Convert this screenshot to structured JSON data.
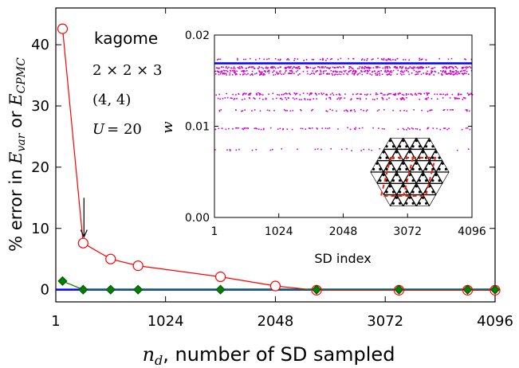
{
  "chart_data": [
    {
      "id": "main",
      "type": "line",
      "xlabel_var": "n",
      "xlabel_sub": "d",
      "xlabel_rest": ", number of SD sampled",
      "ylabel_pre": "% error in ",
      "ylabel_var1": "E",
      "ylabel_sub1": "var",
      "ylabel_mid": " or ",
      "ylabel_var2": "E",
      "ylabel_sub2": "CPMC",
      "xlim": [
        1,
        4096
      ],
      "ylim": [
        -2,
        46
      ],
      "xticks": [
        1,
        1024,
        2048,
        3072,
        4096
      ],
      "yticks": [
        0,
        10,
        20,
        30,
        40
      ],
      "series": [
        {
          "marker": "open-circle",
          "color": "#ff0000",
          "x": [
            64,
            256,
            512,
            768,
            1536,
            2048,
            2432,
            3200,
            3840,
            4096
          ],
          "y": [
            42.6,
            7.6,
            5.0,
            3.9,
            2.1,
            0.6,
            -0.1,
            -0.1,
            -0.1,
            -0.1
          ]
        },
        {
          "marker": "filled-diamond",
          "color": "#008000",
          "x": [
            64,
            256,
            512,
            768,
            1536,
            2432,
            3200,
            3840,
            4096
          ],
          "y": [
            1.4,
            0.0,
            0.0,
            0.0,
            0.0,
            0.0,
            0.0,
            0.0,
            0.0
          ]
        }
      ],
      "reference_line": {
        "y": 0,
        "color": "#0000ff"
      },
      "annotation_arrow": {
        "x": 256,
        "from_y": 15,
        "to_y": 8.6
      }
    },
    {
      "id": "inset",
      "type": "scatter",
      "xlabel": "SD index",
      "ylabel": "w",
      "xlim": [
        1,
        4096
      ],
      "ylim": [
        0,
        0.02
      ],
      "xticks": [
        1,
        1024,
        2048,
        3072,
        4096
      ],
      "ytick_labels": [
        "0.00",
        "0.01",
        "0.02"
      ],
      "yticks": [
        0,
        0.01,
        0.02
      ],
      "reference_line": {
        "y": 0.0169,
        "color": "#0000ff"
      },
      "point_color": "#cc00cc",
      "weight_bands": [
        {
          "w": 0.0174,
          "fill": 0.25
        },
        {
          "w": 0.0165,
          "fill": 0.75
        },
        {
          "w": 0.0161,
          "fill": 0.55
        },
        {
          "w": 0.0158,
          "fill": 0.5
        },
        {
          "w": 0.0136,
          "fill": 0.45
        },
        {
          "w": 0.0131,
          "fill": 0.3
        },
        {
          "w": 0.0118,
          "fill": 0.2
        },
        {
          "w": 0.0098,
          "fill": 0.25
        },
        {
          "w": 0.0075,
          "fill": 0.1
        }
      ]
    }
  ],
  "labels": {
    "system": "kagome",
    "lattice_size": "2 × 2 × 3",
    "filling": "(4, 4)",
    "interaction_var": "U",
    "interaction_val": "= 20"
  },
  "colors": {
    "lattice": "#000000",
    "unit_cell": "#ff2200"
  }
}
